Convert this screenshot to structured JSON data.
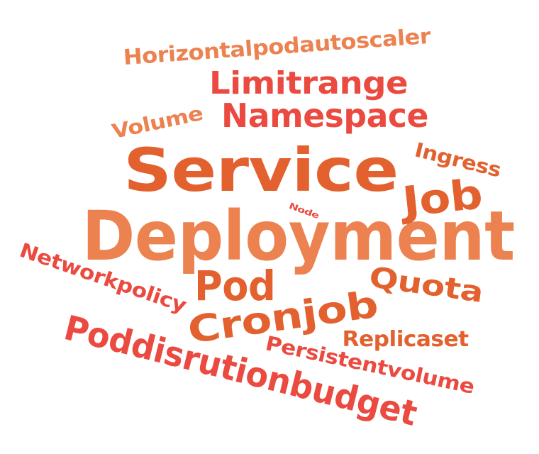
{
  "cloud": {
    "words": [
      {
        "text": "Deployment",
        "color": "#ec8250"
      },
      {
        "text": "Service",
        "color": "#e2612e"
      },
      {
        "text": "Namespace",
        "color": "#eb4a40"
      },
      {
        "text": "Limitrange",
        "color": "#eb4a40"
      },
      {
        "text": "Horizontalpodautoscaler",
        "color": "#ec8250"
      },
      {
        "text": "Volume",
        "color": "#ec8250"
      },
      {
        "text": "Ingress",
        "color": "#e2612e"
      },
      {
        "text": "Job",
        "color": "#e2612e"
      },
      {
        "text": "Node",
        "color": "#eb4a40"
      },
      {
        "text": "Pod",
        "color": "#e2612e"
      },
      {
        "text": "Quota",
        "color": "#e2612e"
      },
      {
        "text": "Cronjob",
        "color": "#e2612e"
      },
      {
        "text": "Networkpolicy",
        "color": "#eb4a40"
      },
      {
        "text": "Replicaset",
        "color": "#e2612e"
      },
      {
        "text": "Persistentvolume",
        "color": "#eb4a40"
      },
      {
        "text": "Poddisrutionbudget",
        "color": "#eb4a40"
      }
    ]
  }
}
